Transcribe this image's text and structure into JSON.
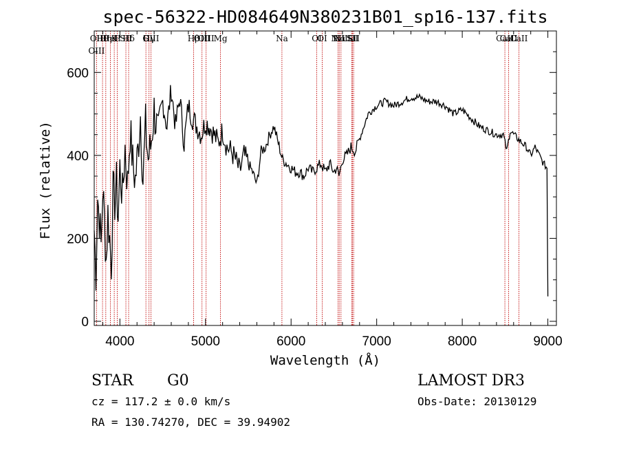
{
  "chart_data": {
    "type": "line",
    "title": "spec-56322-HD084649N380231B01_sp16-137.fits",
    "xlabel": "Wavelength (Å)",
    "ylabel": "Flux (relative)",
    "xlim": [
      3700,
      9100
    ],
    "ylim": [
      -10,
      700
    ],
    "xticks": [
      4000,
      5000,
      6000,
      7000,
      8000,
      9000
    ],
    "yticks": [
      0,
      200,
      400,
      600
    ],
    "series": [
      {
        "name": "flux",
        "x": [
          3700,
          3720,
          3740,
          3760,
          3780,
          3800,
          3820,
          3840,
          3860,
          3880,
          3900,
          3920,
          3940,
          3960,
          3980,
          4000,
          4030,
          4060,
          4090,
          4120,
          4150,
          4180,
          4210,
          4240,
          4270,
          4300,
          4330,
          4360,
          4400,
          4450,
          4500,
          4550,
          4600,
          4650,
          4700,
          4750,
          4800,
          4850,
          4900,
          4950,
          5000,
          5050,
          5100,
          5150,
          5200,
          5250,
          5300,
          5350,
          5400,
          5450,
          5500,
          5550,
          5600,
          5650,
          5700,
          5750,
          5800,
          5850,
          5900,
          5950,
          6000,
          6050,
          6100,
          6150,
          6200,
          6250,
          6300,
          6350,
          6400,
          6450,
          6500,
          6530,
          6560,
          6600,
          6650,
          6700,
          6750,
          6800,
          6850,
          6900,
          6950,
          7000,
          7100,
          7200,
          7300,
          7400,
          7500,
          7600,
          7700,
          7800,
          7900,
          8000,
          8100,
          8200,
          8300,
          8400,
          8480,
          8500,
          8520,
          8560,
          8600,
          8650,
          8700,
          8750,
          8800,
          8850,
          8900,
          8950,
          8990,
          9000
        ],
        "y": [
          220,
          120,
          300,
          250,
          180,
          320,
          240,
          150,
          260,
          200,
          140,
          310,
          290,
          330,
          250,
          370,
          300,
          420,
          330,
          460,
          380,
          340,
          410,
          500,
          340,
          470,
          390,
          420,
          510,
          440,
          530,
          470,
          560,
          470,
          540,
          430,
          520,
          490,
          470,
          450,
          480,
          470,
          450,
          430,
          460,
          420,
          410,
          390,
          360,
          400,
          380,
          360,
          330,
          410,
          420,
          450,
          470,
          430,
          390,
          380,
          370,
          360,
          360,
          350,
          370,
          360,
          370,
          380,
          360,
          380,
          360,
          370,
          350,
          390,
          400,
          420,
          410,
          440,
          470,
          500,
          510,
          520,
          530,
          520,
          530,
          540,
          540,
          530,
          530,
          520,
          500,
          510,
          490,
          470,
          460,
          450,
          450,
          430,
          410,
          460,
          450,
          440,
          430,
          420,
          400,
          420,
          400,
          380,
          370,
          60
        ]
      }
    ],
    "lines": [
      {
        "name": "Hθ",
        "x": 3797
      },
      {
        "name": "OII",
        "x": 3727
      },
      {
        "name": "OIII",
        "x": 3727
      },
      {
        "name": "K",
        "x": 3934
      },
      {
        "name": "H",
        "x": 3969
      },
      {
        "name": "HeI",
        "x": 3889
      },
      {
        "name": "SII",
        "x": 4070
      },
      {
        "name": "Hη",
        "x": 3835
      },
      {
        "name": "Hδ",
        "x": 4102
      },
      {
        "name": "OIII",
        "x": 4363
      },
      {
        "name": "Hγ",
        "x": 4340
      },
      {
        "name": "G",
        "x": 4304
      },
      {
        "name": "Hβ",
        "x": 4861
      },
      {
        "name": "OIII",
        "x": 4959
      },
      {
        "name": "OIII",
        "x": 5007
      },
      {
        "name": "Mg",
        "x": 5175
      },
      {
        "name": "Na",
        "x": 5893
      },
      {
        "name": "OI",
        "x": 6300
      },
      {
        "name": "OI",
        "x": 6364
      },
      {
        "name": "Hα",
        "x": 6563
      },
      {
        "name": "NII",
        "x": 6548
      },
      {
        "name": "NII",
        "x": 6583
      },
      {
        "name": "SII",
        "x": 6717
      },
      {
        "name": "Li",
        "x": 6708
      },
      {
        "name": "SII",
        "x": 6731
      },
      {
        "name": "CaII",
        "x": 8498
      },
      {
        "name": "CaII",
        "x": 8542
      },
      {
        "name": "CaII",
        "x": 8662
      }
    ]
  },
  "info": {
    "class": "STAR",
    "subclass": "G0",
    "survey": "LAMOST DR3",
    "cz": "cz = 117.2 ± 0.0 km/s",
    "obsdate": "Obs-Date: 20130129",
    "radec": "RA = 130.74270, DEC =  39.94902"
  },
  "colors": {
    "line_marker": "#c00000",
    "spectrum": "#000000",
    "axis": "#000000"
  }
}
